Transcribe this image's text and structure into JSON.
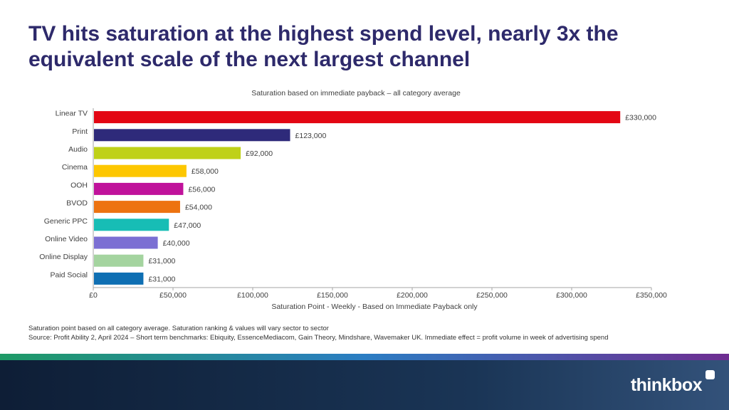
{
  "title": "TV hits saturation at the highest spend level, nearly 3x the equivalent scale of the next largest channel",
  "chart_data": {
    "type": "bar",
    "orientation": "horizontal",
    "title": "Saturation based on immediate payback – all category average",
    "xlabel": "Saturation Point - Weekly - Based on Immediate Payback only",
    "ylabel": "",
    "xlim": [
      0,
      350000
    ],
    "x_ticks": [
      0,
      50000,
      100000,
      150000,
      200000,
      250000,
      300000,
      350000
    ],
    "x_tick_labels": [
      "£0",
      "£50,000",
      "£100,000",
      "£150,000",
      "£200,000",
      "£250,000",
      "£300,000",
      "£350,000"
    ],
    "grid": false,
    "categories": [
      "Linear TV",
      "Print",
      "Audio",
      "Cinema",
      "OOH",
      "BVOD",
      "Generic PPC",
      "Online Video",
      "Online Display",
      "Paid Social"
    ],
    "values": [
      330000,
      123000,
      92000,
      58000,
      56000,
      54000,
      47000,
      40000,
      31000,
      31000
    ],
    "value_labels": [
      "£330,000",
      "£123,000",
      "£92,000",
      "£58,000",
      "£56,000",
      "£54,000",
      "£47,000",
      "£40,000",
      "£31,000",
      "£31,000"
    ],
    "colors": [
      "#e30613",
      "#2e2a7a",
      "#bfd118",
      "#fdc700",
      "#c0129b",
      "#ed7310",
      "#17bdb5",
      "#7b6fd3",
      "#a4d49f",
      "#0f6fb3"
    ]
  },
  "notes": {
    "line1": "Saturation point based on all category average.  Saturation ranking & values  will vary sector to sector",
    "line2": "Source: Profit Ability 2, April 2024 – Short term benchmarks: Ebiquity, EssenceMediacom, Gain Theory,  Mindshare, Wavemaker UK.  Immediate effect = profit volume in week of advertising spend"
  },
  "brand": {
    "logo_text": "thinkbox",
    "title_color": "#2e2a6b",
    "footer_color": "#0e1e36"
  }
}
